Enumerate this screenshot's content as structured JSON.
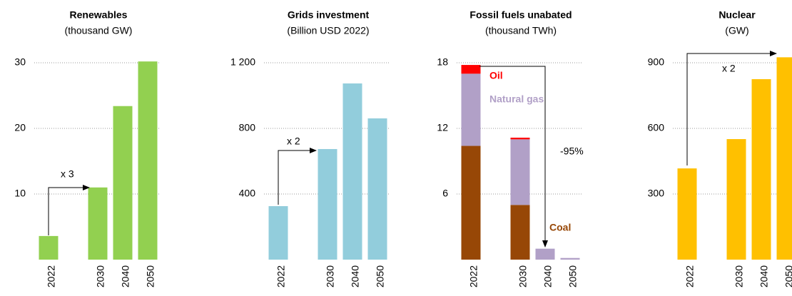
{
  "chart_data": [
    {
      "type": "bar",
      "title": "Renewables",
      "subtitle": "(thousand GW)",
      "categories": [
        "2022",
        "2030",
        "2040",
        "2050"
      ],
      "values": [
        3.6,
        11.0,
        23.4,
        30.2
      ],
      "color": "#92d050",
      "ylim": [
        0,
        30
      ],
      "yticks": [
        10,
        20,
        30
      ],
      "grid": true,
      "annotation": "x 3"
    },
    {
      "type": "bar",
      "title": "Grids investment",
      "subtitle": "(Billion USD 2022)",
      "categories": [
        "2022",
        "2030",
        "2040",
        "2050"
      ],
      "values": [
        326,
        674,
        1074,
        861
      ],
      "color": "#92cddc",
      "ylim": [
        0,
        1200
      ],
      "yticks": [
        400,
        800,
        {
          "value": 1200,
          "label": "1 200"
        }
      ],
      "grid": true,
      "annotation": "x 2"
    },
    {
      "type": "stacked_bar",
      "title": "Fossil fuels unabated",
      "subtitle": "(thousand TWh)",
      "categories": [
        "2022",
        "2030",
        "2040",
        "2050"
      ],
      "series": [
        {
          "name": "Coal",
          "color": "#974706",
          "values": [
            10.4,
            5.0,
            0,
            0
          ]
        },
        {
          "name": "Natural gas",
          "color": "#b1a0c7",
          "values": [
            6.6,
            6.0,
            1.0,
            0.15
          ]
        },
        {
          "name": "Oil",
          "color": "#ff0000",
          "values": [
            0.8,
            0.15,
            0,
            0
          ]
        }
      ],
      "ylim": [
        0,
        18
      ],
      "yticks": [
        6,
        12,
        18
      ],
      "grid": true,
      "annotation": "-95%"
    },
    {
      "type": "bar",
      "title": "Nuclear",
      "subtitle": "(GW)",
      "categories": [
        "2022",
        "2030",
        "2040",
        "2050"
      ],
      "values": [
        417,
        551,
        825,
        925
      ],
      "color": "#ffc000",
      "ylim": [
        0,
        900
      ],
      "yticks": [
        300,
        600,
        900
      ],
      "grid": true,
      "annotation": "x 2"
    }
  ]
}
